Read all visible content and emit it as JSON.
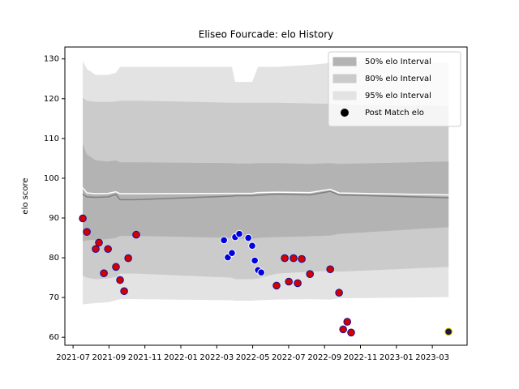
{
  "chart_data": {
    "type": "interval",
    "title": "Eliseo Fourcade: elo History",
    "ylabel": "elo score",
    "xlim": [
      2021.462,
      2023.328
    ],
    "ylim": [
      58,
      133
    ],
    "xticks": [
      {
        "value": 2021.5,
        "label": "2021-07"
      },
      {
        "value": 2021.6667,
        "label": "2021-09"
      },
      {
        "value": 2021.8333,
        "label": "2021-11"
      },
      {
        "value": 2022.0,
        "label": "2022-01"
      },
      {
        "value": 2022.1667,
        "label": "2022-03"
      },
      {
        "value": 2022.3333,
        "label": "2022-05"
      },
      {
        "value": 2022.5,
        "label": "2022-07"
      },
      {
        "value": 2022.6667,
        "label": "2022-09"
      },
      {
        "value": 2022.8333,
        "label": "2022-11"
      },
      {
        "value": 2023.0,
        "label": "2023-01"
      },
      {
        "value": 2023.1667,
        "label": "2023-03"
      }
    ],
    "yticks": [
      60,
      70,
      80,
      90,
      100,
      110,
      120,
      130
    ],
    "band_x": [
      2021.545,
      2021.564,
      2021.605,
      2021.662,
      2021.699,
      2021.718,
      2021.793,
      2022.237,
      2022.252,
      2022.331,
      2022.358,
      2022.444,
      2022.599,
      2022.693,
      2022.734,
      2023.242
    ],
    "bands": [
      {
        "name": "95% elo Interval",
        "color": "#e3e3e3",
        "upper": [
          129.5,
          127.5,
          126,
          126,
          126.5,
          128,
          128,
          128,
          124.2,
          124.2,
          128,
          128,
          128.5,
          129,
          129.5,
          129
        ],
        "lower": [
          68.3,
          68.4,
          68.6,
          68.8,
          69.3,
          69.6,
          69.6,
          69.3,
          69.2,
          69.2,
          69.3,
          69.5,
          69.6,
          69.5,
          69.8,
          70.1
        ]
      },
      {
        "name": "80% elo Interval",
        "color": "#cbcbcb",
        "upper": [
          120.2,
          119.5,
          119.2,
          119.2,
          119.3,
          119.5,
          119.5,
          119,
          119,
          119,
          119,
          119,
          118.8,
          118.7,
          118.5,
          118.2
        ],
        "lower": [
          75.5,
          75,
          74.6,
          74.8,
          75.2,
          76,
          76,
          75,
          74.6,
          74.6,
          74.8,
          76,
          76.5,
          76.7,
          76.5,
          77.7
        ]
      },
      {
        "name": "50% elo Interval",
        "color": "#b3b3b3",
        "upper": [
          108.6,
          106,
          104.5,
          104.2,
          104.5,
          104,
          104,
          103.8,
          103.7,
          103.7,
          103.8,
          103.8,
          103.6,
          103.8,
          103.6,
          104.2
        ],
        "lower": [
          84.2,
          84.4,
          84.5,
          84.7,
          85,
          85.5,
          85.5,
          85,
          84.8,
          84.8,
          85,
          85.2,
          85.4,
          85.6,
          86,
          87.7
        ]
      }
    ],
    "lines": [
      {
        "color": "#ffffff",
        "values": [
          97.6,
          96.3,
          96.1,
          96.2,
          96.6,
          96.1,
          96.1,
          96.2,
          96.2,
          96.2,
          96.4,
          96.5,
          96.4,
          97.2,
          96.3,
          95.8
        ]
      },
      {
        "color": "#808080",
        "values": [
          96,
          95.3,
          95.2,
          95.3,
          95.9,
          94.6,
          94.6,
          95.5,
          95.6,
          95.6,
          95.7,
          96,
          95.8,
          96.7,
          95.8,
          95.1
        ]
      }
    ],
    "series": [
      {
        "name": "Post Match elo",
        "color": "#000000",
        "x": [
          2021.545,
          2021.564,
          2021.605,
          2021.62,
          2021.643,
          2021.662,
          2021.699,
          2021.718,
          2021.737,
          2021.756,
          2021.793,
          2022.2,
          2022.218,
          2022.237,
          2022.252,
          2022.271,
          2022.313,
          2022.331,
          2022.343,
          2022.358,
          2022.373,
          2022.444,
          2022.482,
          2022.501,
          2022.523,
          2022.542,
          2022.561,
          2022.599,
          2022.693,
          2022.734,
          2022.753,
          2022.772,
          2022.79,
          2023.242
        ],
        "values": [
          89.9,
          86.5,
          82.2,
          83.8,
          76.1,
          82.2,
          77.7,
          74.4,
          71.6,
          79.9,
          85.8,
          84.4,
          80.1,
          81.2,
          85.2,
          86.0,
          85.0,
          83.0,
          79.3,
          76.9,
          76.3,
          73.0,
          79.9,
          74.0,
          79.9,
          73.6,
          79.7,
          75.9,
          77.1,
          71.2,
          62.0,
          63.9,
          61.2,
          61.4
        ],
        "colors": [
          "#d40000",
          "#d40000",
          "#d40000",
          "#d40000",
          "#d40000",
          "#d40000",
          "#d40000",
          "#d40000",
          "#d40000",
          "#d40000",
          "#d40000",
          "#0000e0",
          "#0000e0",
          "#0000e0",
          "#0000e0",
          "#0000e0",
          "#0000e0",
          "#0000e0",
          "#0000e0",
          "#0000e0",
          "#0000e0",
          "#d40000",
          "#d40000",
          "#d40000",
          "#d40000",
          "#d40000",
          "#d40000",
          "#d40000",
          "#d40000",
          "#d40000",
          "#d40000",
          "#d40000",
          "#d40000",
          "#1a1a3a"
        ],
        "edgecolors": [
          "#1010a0",
          "#1010a0",
          "#1010a0",
          "#1010a0",
          "#1010a0",
          "#1010a0",
          "#1010a0",
          "#1010a0",
          "#1010a0",
          "#1010a0",
          "#1010a0",
          "#ffffff",
          "#ffffff",
          "#ffffff",
          "#ffffff",
          "#ffffff",
          "#ffffff",
          "#ffffff",
          "#ffffff",
          "#ffffff",
          "#ffffff",
          "#1010a0",
          "#1010a0",
          "#1010a0",
          "#1010a0",
          "#1010a0",
          "#1010a0",
          "#1010a0",
          "#1010a0",
          "#1010a0",
          "#1010a0",
          "#1010a0",
          "#1010a0",
          "#e0c000"
        ]
      }
    ],
    "legend": "upper right"
  }
}
